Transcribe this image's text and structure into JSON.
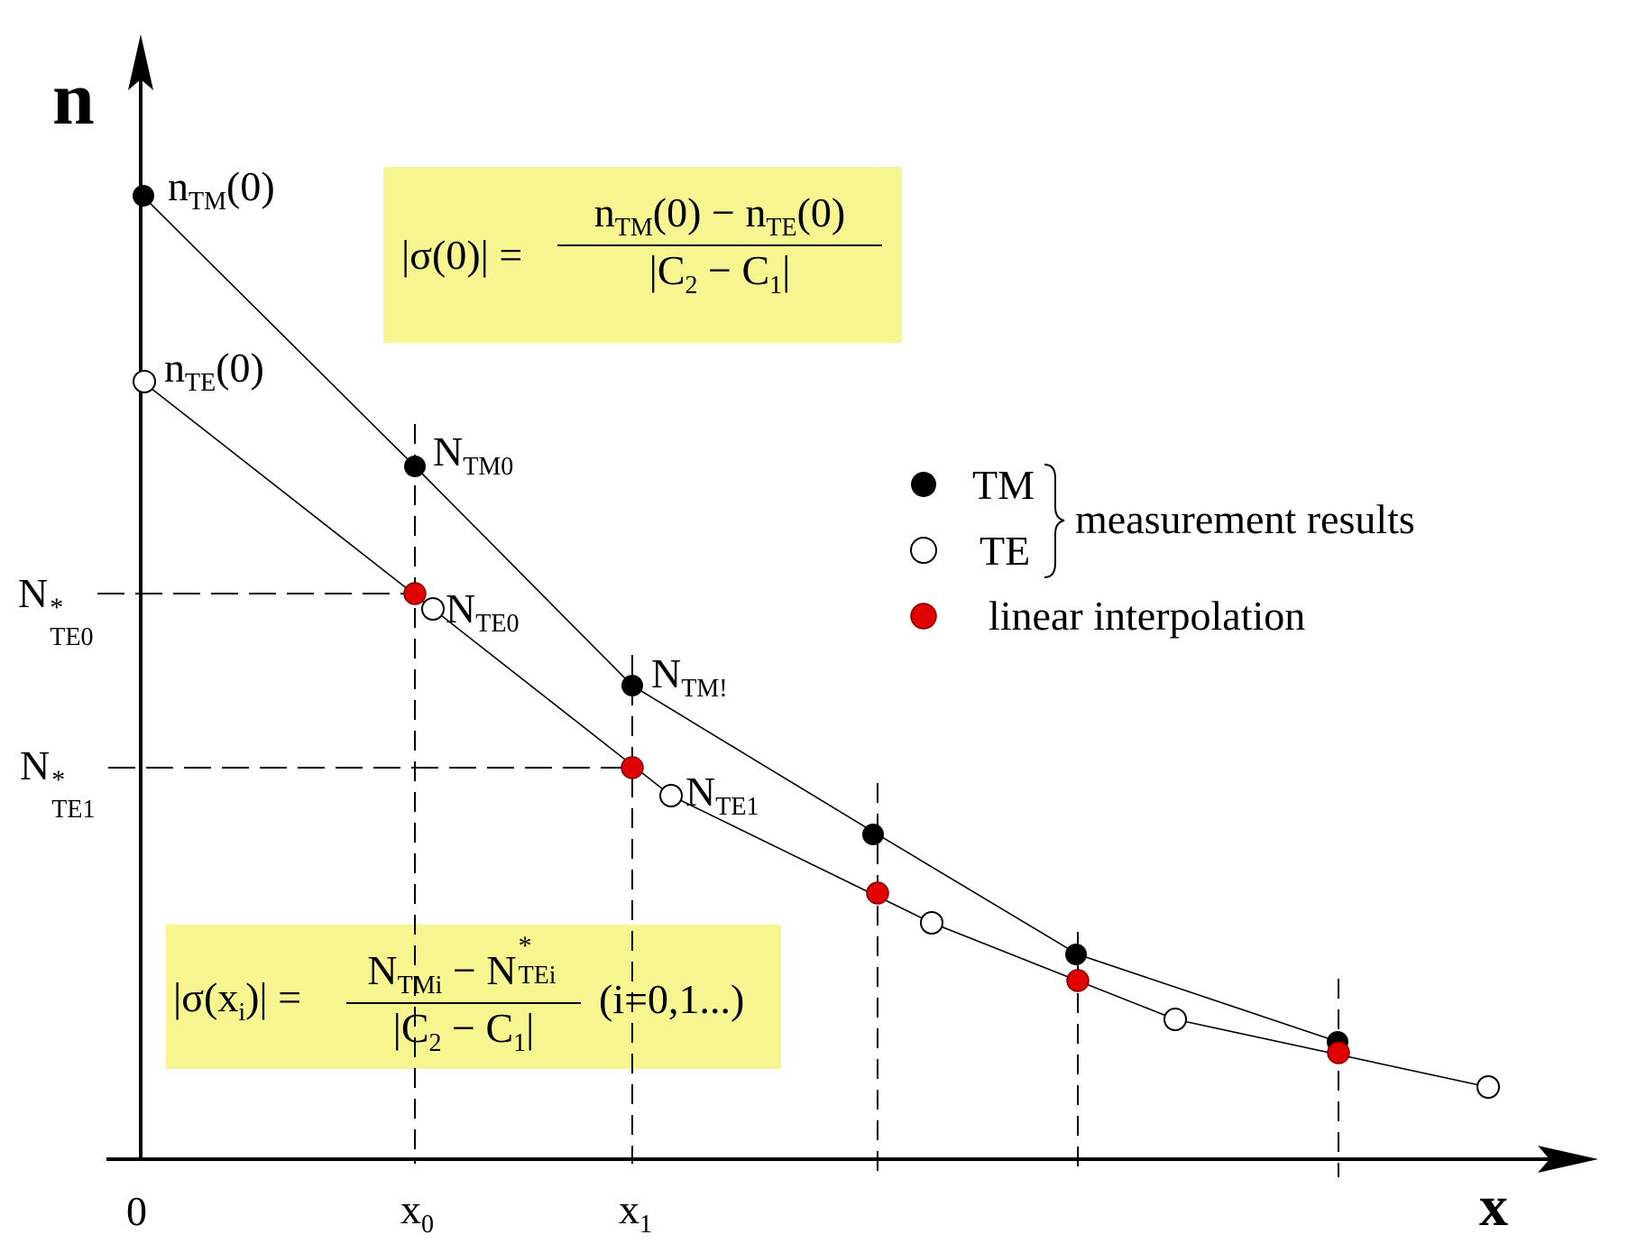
{
  "axes": {
    "y_label": "n",
    "x_label": "x",
    "origin": "0",
    "x_ticks": [
      {
        "base": "x",
        "sub": "0"
      },
      {
        "base": "x",
        "sub": "1"
      }
    ],
    "y_ticks": [
      {
        "base": "N",
        "sup": "*",
        "sub": "TE0"
      },
      {
        "base": "N",
        "sup": "*",
        "sub": "TE1"
      }
    ]
  },
  "point_labels": {
    "n_tm0": {
      "base": "n",
      "sub": "TM",
      "tail": "(0)"
    },
    "n_te0": {
      "base": "n",
      "sub": "TE",
      "tail": "(0)"
    },
    "N_tm0": {
      "base": "N",
      "sub": "TM0"
    },
    "N_te0": {
      "base": "N",
      "sub": "TE0"
    },
    "N_tm1": {
      "base": "N",
      "sub": "TM!"
    },
    "N_te1": {
      "base": "N",
      "sub": "TE1"
    }
  },
  "formula_top": {
    "lhs": "|σ(0)| =",
    "num_a": "n",
    "num_a_sub": "TM",
    "num_a_tail": "(0) − ",
    "num_b": "n",
    "num_b_sub": "TE",
    "num_b_tail": "(0)",
    "den_a": "|C",
    "den_a_sub": "2",
    "den_mid": " − C",
    "den_b_sub": "1",
    "den_tail": "|"
  },
  "formula_bottom": {
    "lhs": "|σ(x",
    "lhs_sub": "i",
    "lhs_tail": ")| =",
    "num_a": "N",
    "num_a_sub": "TMi",
    "num_mid": " − N",
    "num_b_sup": "*",
    "num_b_sub": "TEi",
    "den_a": "|C",
    "den_a_sub": "2",
    "den_mid": " − C",
    "den_b_sub": "1",
    "den_tail": "|",
    "suffix": "(i=0,1...)"
  },
  "legend": {
    "tm": "TM",
    "te": "TE",
    "group_label": "measurement results",
    "interp": "linear interpolation"
  },
  "colors": {
    "tm_marker": "#000000",
    "te_marker": "#ffffff",
    "interp_marker": "#e00000",
    "formula_bg": "#f7f58f"
  },
  "chart_data": {
    "type": "scatter",
    "series": [
      {
        "name": "TM",
        "marker": "filled-black",
        "x": [
          0,
          1,
          2,
          3.1,
          4,
          5.2
        ],
        "y": [
          10.2,
          7.1,
          5.3,
          4.0,
          3.0,
          2.3
        ]
      },
      {
        "name": "TE",
        "marker": "open-circle",
        "x": [
          0,
          1.08,
          2.15,
          3.35,
          4.45,
          5.88
        ],
        "y": [
          8.6,
          6.0,
          4.35,
          3.3,
          2.5,
          1.9
        ]
      },
      {
        "name": "linear interpolation",
        "marker": "filled-red",
        "x": [
          1,
          2,
          3.1,
          4,
          5.2
        ],
        "y": [
          6.1,
          4.6,
          3.5,
          2.8,
          2.2
        ]
      }
    ]
  }
}
